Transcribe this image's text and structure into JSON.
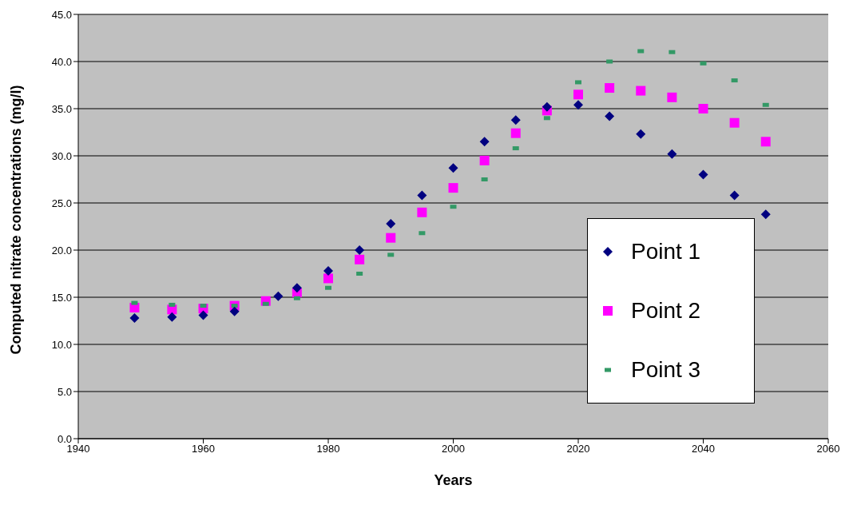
{
  "chart_data": {
    "type": "scatter",
    "xlabel": "Years",
    "ylabel": "Computed nitrate concentrations (mg/l)",
    "x": [
      1949,
      1955,
      1960,
      1965,
      1970,
      1975,
      1980,
      1985,
      1990,
      1995,
      2000,
      2005,
      2010,
      2015,
      2020,
      2025,
      2030,
      2035,
      2040,
      2045,
      2050
    ],
    "series": [
      {
        "name": "Point 1",
        "color": "#000080",
        "marker": "diamond",
        "x": [
          1949,
          1955,
          1960,
          1965,
          1972,
          1975,
          1980,
          1985,
          1990,
          1995,
          2000,
          2005,
          2010,
          2015,
          2020,
          2025,
          2030,
          2035,
          2040,
          2045,
          2050
        ],
        "values": [
          12.8,
          12.9,
          13.1,
          13.5,
          15.1,
          16.0,
          17.8,
          20.0,
          22.8,
          25.8,
          28.7,
          31.5,
          33.8,
          35.2,
          35.4,
          34.2,
          32.3,
          30.2,
          28.0,
          25.8,
          23.8
        ]
      },
      {
        "name": "Point 2",
        "color": "#ff00ff",
        "marker": "square",
        "values": [
          13.9,
          13.7,
          13.8,
          14.1,
          14.6,
          15.5,
          17.0,
          19.0,
          21.3,
          24.0,
          26.6,
          29.5,
          32.4,
          34.8,
          36.5,
          37.2,
          36.9,
          36.2,
          35.0,
          33.5,
          31.5
        ]
      },
      {
        "name": "Point 3",
        "color": "#339966",
        "marker": "square",
        "values": [
          14.4,
          14.2,
          14.1,
          14.1,
          14.3,
          14.9,
          16.0,
          17.5,
          19.5,
          21.8,
          24.6,
          27.5,
          30.8,
          34.0,
          37.8,
          40.0,
          41.1,
          41.0,
          39.8,
          38.0,
          35.4
        ]
      }
    ],
    "xlim": [
      1940,
      2060
    ],
    "xticks": [
      1940,
      1960,
      1980,
      2000,
      2020,
      2040,
      2060
    ],
    "ylim": [
      0,
      45
    ],
    "yticks": [
      {
        "value": 0,
        "label": "0.0"
      },
      {
        "value": 5,
        "label": "5.0"
      },
      {
        "value": 10,
        "label": "10.0"
      },
      {
        "value": 15,
        "label": "15.0"
      },
      {
        "value": 20,
        "label": "20.0"
      },
      {
        "value": 25,
        "label": "25.0"
      },
      {
        "value": 30,
        "label": "30.0"
      },
      {
        "value": 35,
        "label": "35.0"
      },
      {
        "value": 40,
        "label": "40.0"
      },
      {
        "value": 45,
        "label": "45.0"
      }
    ],
    "grid": "y",
    "legend": "right"
  }
}
